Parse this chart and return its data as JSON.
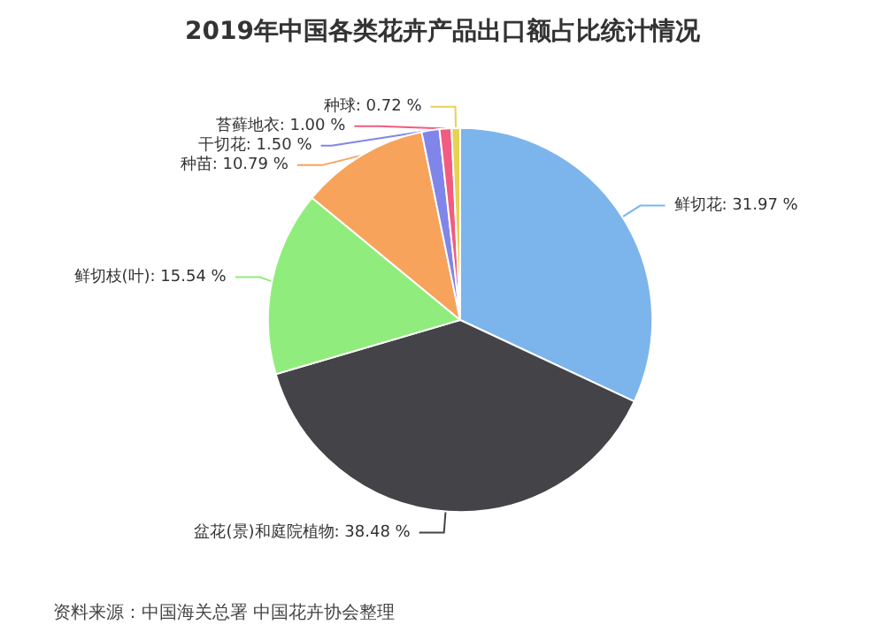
{
  "chart_data": {
    "type": "pie",
    "title": "2019年中国各类花卉产品出口额占比统计情况",
    "categories": [
      "鲜切花",
      "盆花(景)和庭院植物",
      "鲜切枝(叶)",
      "种苗",
      "干切花",
      "苔藓地衣",
      "种球"
    ],
    "values": [
      31.97,
      38.48,
      15.54,
      10.79,
      1.5,
      1.0,
      0.72
    ],
    "value_labels": [
      "31.97 %",
      "38.48 %",
      "15.54 %",
      "10.79 %",
      "1.50 %",
      "1.00 %",
      "0.72 %"
    ],
    "colors": [
      "#7cb5ec",
      "#434348",
      "#90ed7d",
      "#f7a35c",
      "#8085e9",
      "#f15c80",
      "#e4d354"
    ],
    "annotations": [
      "资料来源：中国海关总署 中国花卉协会整理"
    ],
    "legend": false
  }
}
